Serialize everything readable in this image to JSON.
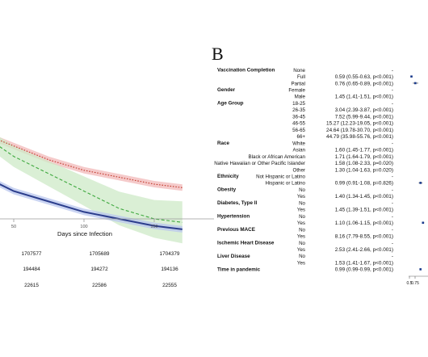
{
  "panel_b_label": "B",
  "chart_data": [
    {
      "type": "line",
      "xlabel": "Days since Infection",
      "x_ticks": [
        50,
        100,
        150
      ],
      "x_tick_labels": [
        "50",
        "100",
        "150"
      ],
      "grid": false,
      "legend": "none",
      "series": [
        {
          "color": "#c0392b",
          "style": "dotted",
          "band_color": "#f2b8b8",
          "x": [
            0,
            25,
            50,
            75,
            100,
            125,
            150,
            170
          ],
          "y": [
            0.93,
            0.88,
            0.84,
            0.8,
            0.77,
            0.75,
            0.73,
            0.72
          ]
        },
        {
          "color": "#3ea83e",
          "style": "dashed",
          "band_color": "#cdeac7",
          "x": [
            0,
            25,
            50,
            75,
            100,
            125,
            150,
            170
          ],
          "y": [
            0.95,
            0.88,
            0.81,
            0.76,
            0.71,
            0.66,
            0.63,
            0.62
          ]
        },
        {
          "color": "#2c3e8c",
          "style": "solid",
          "band_color": "#b8c6ee",
          "x": [
            0,
            25,
            50,
            75,
            100,
            125,
            150,
            170
          ],
          "y": [
            0.82,
            0.76,
            0.71,
            0.68,
            0.65,
            0.63,
            0.61,
            0.6
          ]
        }
      ],
      "risk_table": [
        [
          "1707577",
          "1705689",
          "1704379"
        ],
        [
          "194484",
          "194272",
          "194136"
        ],
        [
          "22615",
          "22586",
          "22555"
        ]
      ]
    },
    {
      "type": "forest",
      "x_ticks": [
        0.5,
        0.75
      ],
      "x_tick_labels": [
        "0.5",
        "0.75"
      ],
      "rows": [
        {
          "header": "Vaccination Completion",
          "level": "None",
          "estimate": "-"
        },
        {
          "header": "",
          "level": "Full",
          "estimate": "0.59 (0.55-0.63, p<0.001)",
          "hr": 0.59,
          "lo": 0.55,
          "hi": 0.63
        },
        {
          "header": "",
          "level": "Partial",
          "estimate": "0.76 (0.65-0.89, p<0.001)",
          "hr": 0.76,
          "lo": 0.65,
          "hi": 0.89
        },
        {
          "header": "Gender",
          "level": "Female",
          "estimate": "-"
        },
        {
          "header": "",
          "level": "Male",
          "estimate": "1.45 (1.41-1.51, p<0.001)",
          "hr": 1.45,
          "lo": 1.41,
          "hi": 1.51
        },
        {
          "header": "Age Group",
          "level": "18-25",
          "estimate": "-"
        },
        {
          "header": "",
          "level": "26-35",
          "estimate": "3.04 (2.39-3.87, p<0.001)",
          "hr": 3.04,
          "lo": 2.39,
          "hi": 3.87
        },
        {
          "header": "",
          "level": "36-45",
          "estimate": "7.52 (5.99-9.44, p<0.001)",
          "hr": 7.52,
          "lo": 5.99,
          "hi": 9.44
        },
        {
          "header": "",
          "level": "46-55",
          "estimate": "15.27 (12.23-19.05, p<0.001)",
          "hr": 15.27,
          "lo": 12.23,
          "hi": 19.05
        },
        {
          "header": "",
          "level": "56-65",
          "estimate": "24.64 (19.78-30.70, p<0.001)",
          "hr": 24.64,
          "lo": 19.78,
          "hi": 30.7
        },
        {
          "header": "",
          "level": "66+",
          "estimate": "44.79 (35.98-55.76, p<0.001)",
          "hr": 44.79,
          "lo": 35.98,
          "hi": 55.76
        },
        {
          "header": "Race",
          "level": "White",
          "estimate": "-"
        },
        {
          "header": "",
          "level": "Asian",
          "estimate": "1.60 (1.45-1.77, p<0.001)",
          "hr": 1.6,
          "lo": 1.45,
          "hi": 1.77
        },
        {
          "header": "",
          "level": "Black or African American",
          "estimate": "1.71 (1.64-1.79, p<0.001)",
          "hr": 1.71,
          "lo": 1.64,
          "hi": 1.79
        },
        {
          "header": "",
          "level": "Native Hawaiian or Other Pacific Islander",
          "estimate": "1.58 (1.08-2.33, p=0.020)",
          "hr": 1.58,
          "lo": 1.08,
          "hi": 2.33
        },
        {
          "header": "",
          "level": "Other",
          "estimate": "1.30 (1.04-1.63, p=0.020)",
          "hr": 1.3,
          "lo": 1.04,
          "hi": 1.63
        },
        {
          "header": "Ethnicity",
          "level": "Not Hispanic or Latino",
          "estimate": "-"
        },
        {
          "header": "",
          "level": "Hispanic or Latino",
          "estimate": "0.99 (0.91-1.08, p=0.826)",
          "hr": 0.99,
          "lo": 0.91,
          "hi": 1.08
        },
        {
          "header": "Obesity",
          "level": "No",
          "estimate": "-"
        },
        {
          "header": "",
          "level": "Yes",
          "estimate": "1.40 (1.34-1.45, p<0.001)",
          "hr": 1.4,
          "lo": 1.34,
          "hi": 1.45
        },
        {
          "header": "Diabetes, Type II",
          "level": "No",
          "estimate": "-"
        },
        {
          "header": "",
          "level": "Yes",
          "estimate": "1.45 (1.39-1.51, p<0.001)",
          "hr": 1.45,
          "lo": 1.39,
          "hi": 1.51
        },
        {
          "header": "Hypertension",
          "level": "No",
          "estimate": "-"
        },
        {
          "header": "",
          "level": "Yes",
          "estimate": "1.10 (1.06-1.15, p<0.001)",
          "hr": 1.1,
          "lo": 1.06,
          "hi": 1.15
        },
        {
          "header": "Previous MACE",
          "level": "No",
          "estimate": "-"
        },
        {
          "header": "",
          "level": "Yes",
          "estimate": "8.16 (7.79-8.55, p<0.001)",
          "hr": 8.16,
          "lo": 7.79,
          "hi": 8.55
        },
        {
          "header": "Ischemic Heart Disease",
          "level": "No",
          "estimate": "-"
        },
        {
          "header": "",
          "level": "Yes",
          "estimate": "2.53 (2.41-2.66, p<0.001)",
          "hr": 2.53,
          "lo": 2.41,
          "hi": 2.66
        },
        {
          "header": "Liver Disease",
          "level": "No",
          "estimate": "-"
        },
        {
          "header": "",
          "level": "Yes",
          "estimate": "1.53 (1.41-1.67, p<0.001)",
          "hr": 1.53,
          "lo": 1.41,
          "hi": 1.67
        },
        {
          "header": "Time in pandemic",
          "level": "",
          "estimate": "0.99 (0.99-0.99, p<0.001)",
          "hr": 0.99,
          "lo": 0.99,
          "hi": 0.99
        }
      ]
    }
  ]
}
